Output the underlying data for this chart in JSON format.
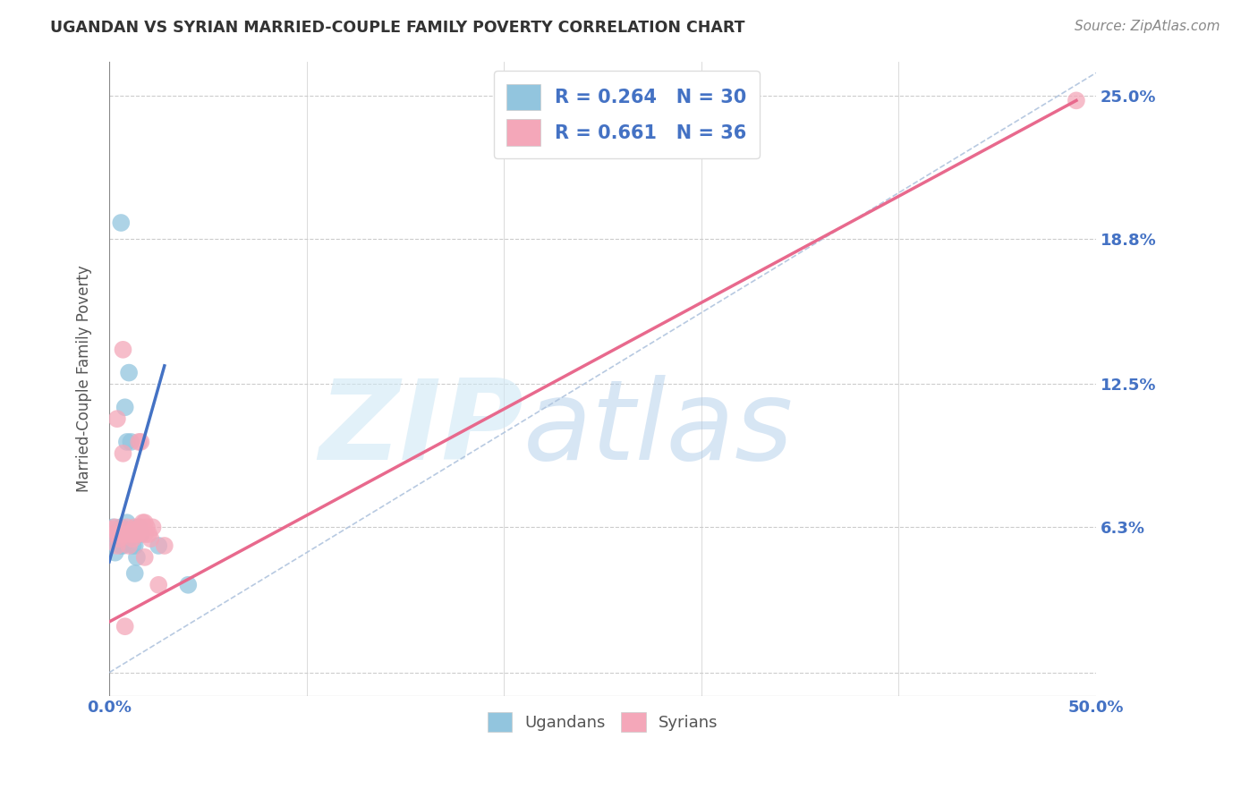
{
  "title": "UGANDAN VS SYRIAN MARRIED-COUPLE FAMILY POVERTY CORRELATION CHART",
  "source": "Source: ZipAtlas.com",
  "ylabel": "Married-Couple Family Poverty",
  "xlim": [
    0.0,
    0.5
  ],
  "ylim": [
    -0.01,
    0.265
  ],
  "xticks": [
    0.0,
    0.1,
    0.2,
    0.3,
    0.4,
    0.5
  ],
  "xticklabels": [
    "0.0%",
    "",
    "",
    "",
    "",
    "50.0%"
  ],
  "ytick_positions": [
    0.0,
    0.063,
    0.125,
    0.188,
    0.25
  ],
  "ytick_labels": [
    "",
    "6.3%",
    "12.5%",
    "18.8%",
    "25.0%"
  ],
  "ugandan_color": "#92c5de",
  "syrian_color": "#f4a7b9",
  "ugandan_R": 0.264,
  "ugandan_N": 30,
  "syrian_R": 0.661,
  "syrian_N": 36,
  "watermark_zip": "ZIP",
  "watermark_atlas": "atlas",
  "background_color": "#ffffff",
  "grid_color": "#cccccc",
  "axis_label_color": "#4472c4",
  "tick_label_color": "#4472c4",
  "ugandan_line_color": "#4472c4",
  "syrian_line_color": "#e8698d",
  "diag_line_color": "#b0c4de",
  "ugandan_scatter_x": [
    0.002,
    0.004,
    0.006,
    0.007,
    0.008,
    0.01,
    0.011,
    0.012,
    0.013,
    0.015,
    0.002,
    0.003,
    0.005,
    0.006,
    0.008,
    0.009,
    0.01,
    0.012,
    0.014,
    0.016,
    0.001,
    0.003,
    0.004,
    0.006,
    0.007,
    0.009,
    0.011,
    0.013,
    0.025,
    0.04
  ],
  "ugandan_scatter_y": [
    0.063,
    0.058,
    0.055,
    0.06,
    0.062,
    0.058,
    0.1,
    0.06,
    0.055,
    0.063,
    0.056,
    0.052,
    0.06,
    0.195,
    0.115,
    0.1,
    0.13,
    0.055,
    0.05,
    0.06,
    0.06,
    0.056,
    0.06,
    0.063,
    0.055,
    0.065,
    0.06,
    0.043,
    0.055,
    0.038
  ],
  "syrian_scatter_x": [
    0.003,
    0.005,
    0.007,
    0.009,
    0.01,
    0.012,
    0.014,
    0.016,
    0.018,
    0.02,
    0.002,
    0.004,
    0.006,
    0.008,
    0.011,
    0.013,
    0.015,
    0.017,
    0.019,
    0.021,
    0.003,
    0.005,
    0.007,
    0.009,
    0.012,
    0.014,
    0.016,
    0.018,
    0.022,
    0.025,
    0.004,
    0.008,
    0.013,
    0.018,
    0.028,
    0.49
  ],
  "syrian_scatter_y": [
    0.06,
    0.058,
    0.095,
    0.06,
    0.055,
    0.058,
    0.06,
    0.1,
    0.065,
    0.06,
    0.062,
    0.11,
    0.06,
    0.062,
    0.06,
    0.062,
    0.1,
    0.065,
    0.063,
    0.058,
    0.063,
    0.06,
    0.14,
    0.063,
    0.06,
    0.06,
    0.063,
    0.05,
    0.063,
    0.038,
    0.055,
    0.02,
    0.063,
    0.06,
    0.055,
    0.248
  ]
}
